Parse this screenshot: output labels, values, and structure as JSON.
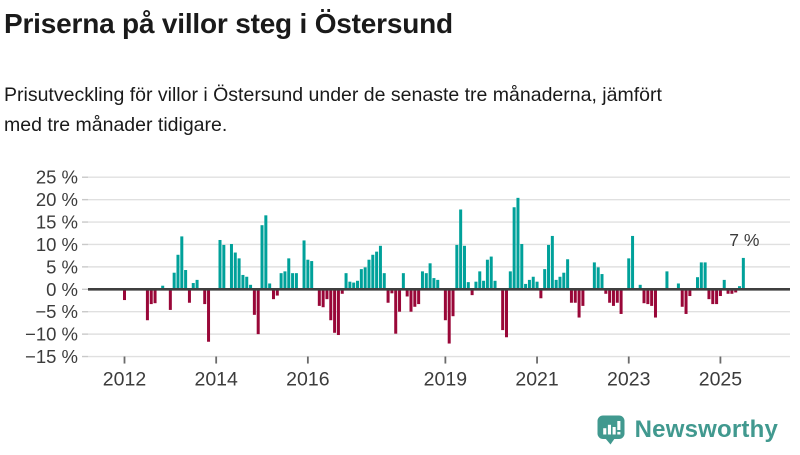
{
  "header": {
    "title": "Priserna på villor steg i Östersund",
    "subtitle": "Prisutveckling för villor i Östersund under de senaste tre månaderna, jämfört med tre månader tidigare."
  },
  "chart_data": {
    "type": "bar",
    "title": "Priserna på villor steg i Östersund",
    "unit": "%",
    "grid": true,
    "legend_position": "none",
    "ylim": [
      -15,
      25
    ],
    "y_axis": {
      "tick_labels": [
        "25 %",
        "20 %",
        "15 %",
        "10 %",
        "5 %",
        "0 %",
        "−5 %",
        "−10 %",
        "−15 %"
      ],
      "tick_values": [
        25,
        20,
        15,
        10,
        5,
        0,
        -5,
        -10,
        -15
      ]
    },
    "x_axis": {
      "tick_labels": [
        "2012",
        "2014",
        "2016",
        "2019",
        "2021",
        "2023",
        "2025"
      ],
      "tick_years": [
        2012,
        2014,
        2016,
        2019,
        2021,
        2023,
        2025
      ]
    },
    "series_monthly": {
      "name": "Prisutveckling villor Östersund, 3 mån jämfört med föregående 3 mån (%)",
      "start": "2012-01",
      "values_by_year": {
        "2012": [
          -2.4,
          0,
          0,
          0,
          0,
          0,
          -6.9,
          -3.3,
          -3.1,
          0,
          0.8,
          0
        ],
        "2013": [
          -4.6,
          3.7,
          7.7,
          11.8,
          4.3,
          -3.0,
          1.4,
          2.1,
          0,
          -3.3,
          -11.7,
          0
        ],
        "2014": [
          0,
          11.0,
          9.9,
          0,
          10.1,
          8.2,
          6.9,
          3.2,
          2.8,
          1.0,
          -5.7,
          -10.0
        ],
        "2015": [
          14.3,
          16.5,
          1.3,
          -2.2,
          -1.4,
          3.6,
          4.0,
          6.9,
          3.6,
          3.6,
          0,
          10.9
        ],
        "2016": [
          6.6,
          6.3,
          0,
          -3.7,
          -4.0,
          -2.2,
          -6.9,
          -9.7,
          -10.2,
          -1.0,
          3.6,
          1.7
        ],
        "2017": [
          1.5,
          1.9,
          4.5,
          4.9,
          6.6,
          7.7,
          8.4,
          9.7,
          3.6,
          -3.0,
          -0.9,
          -9.9
        ],
        "2018": [
          -5.0,
          3.6,
          -1.6,
          -5.0,
          -3.9,
          -3.3,
          4.0,
          3.6,
          5.8,
          2.5,
          2.1,
          0
        ],
        "2019": [
          -6.9,
          -12.1,
          -6.0,
          9.9,
          17.8,
          9.7,
          1.6,
          -1.3,
          1.7,
          4.0,
          1.9,
          6.6
        ],
        "2020": [
          7.3,
          1.9,
          0,
          -9.1,
          -10.7,
          4.0,
          18.3,
          20.4,
          10.1,
          1.2,
          2.1,
          2.8
        ],
        "2021": [
          1.7,
          -2.0,
          4.5,
          9.9,
          11.9,
          2.1,
          2.8,
          3.7,
          6.7,
          -3.0,
          -3.0,
          -6.3
        ],
        "2022": [
          -3.7,
          0,
          0,
          6.0,
          4.9,
          3.4,
          -1.0,
          -3.0,
          -3.7,
          -3.0,
          -5.5,
          0
        ],
        "2023": [
          6.9,
          11.9,
          0,
          1.0,
          -3.1,
          -3.3,
          -3.7,
          -6.3,
          0,
          0,
          4.0,
          0
        ],
        "2024": [
          0,
          1.3,
          -3.9,
          -5.5,
          -1.5,
          0,
          2.7,
          6.0,
          6.0,
          -2.2,
          -3.3,
          -3.3
        ],
        "2025": [
          -1.5,
          2.1,
          -1.0,
          -1.0,
          -0.7,
          0.7,
          7.0
        ]
      }
    },
    "annotation": {
      "text": "7 %",
      "month": "2025-07",
      "value": 7
    },
    "colors": {
      "positive": "#00a19a",
      "negative": "#990738",
      "gridline": "#e0e0e0",
      "zero_line": "#3f3f3f",
      "axis_text": "#3c3c3c",
      "annotation_text": "#3c3c3c"
    }
  },
  "footer": {
    "brand": "Newsworthy",
    "brand_color": "#41998f",
    "logo_icon": "newsworthy-chart-bubble-icon"
  }
}
